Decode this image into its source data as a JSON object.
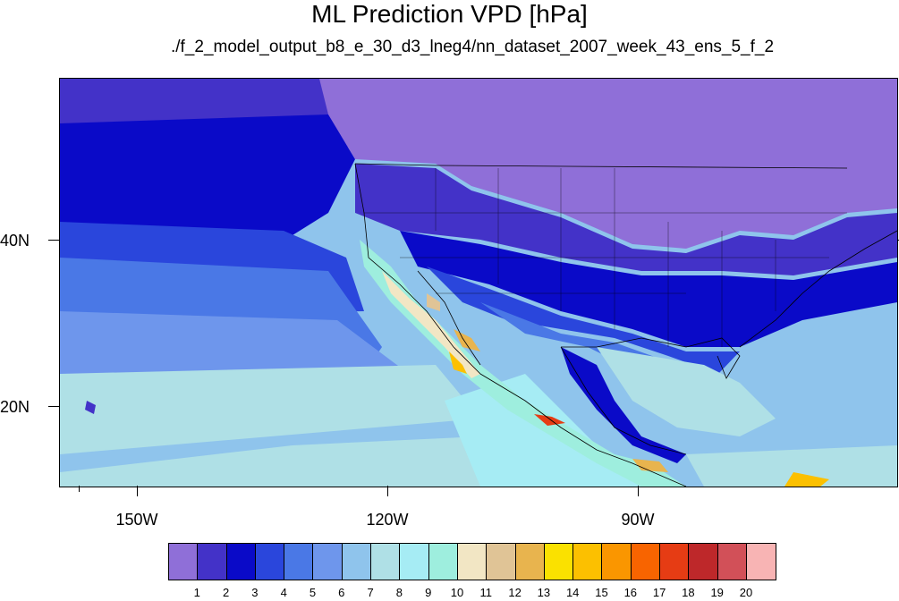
{
  "title": "ML Prediction VPD [hPa]",
  "subtitle": "./f_2_model_output_b8_e_30_d3_lneg4/nn_dataset_2007_week_43_ens_5_f_2",
  "map": {
    "region": "North America, Eastern Pacific, Mexico",
    "lon_range": [
      -160,
      -60
    ],
    "lat_range": [
      10,
      59
    ],
    "lat_labels": [
      "40N",
      "20N"
    ],
    "lon_labels": [
      "150W",
      "120W",
      "90W"
    ]
  },
  "colorbar": {
    "colors": [
      "#8f6fd8",
      "#4332c8",
      "#0a0ac8",
      "#2a46dc",
      "#4a78e6",
      "#6e96ec",
      "#8fc4ec",
      "#afe0e6",
      "#a6ecf4",
      "#9eeede",
      "#f2e6c4",
      "#e0c496",
      "#e8b44e",
      "#fae100",
      "#fcc000",
      "#fa9600",
      "#f86400",
      "#e63c14",
      "#be282a",
      "#d25058",
      "#f8b4b4"
    ],
    "labels": [
      "1",
      "2",
      "3",
      "4",
      "5",
      "6",
      "7",
      "8",
      "9",
      "10",
      "11",
      "12",
      "13",
      "14",
      "15",
      "16",
      "17",
      "18",
      "19",
      "20"
    ]
  }
}
